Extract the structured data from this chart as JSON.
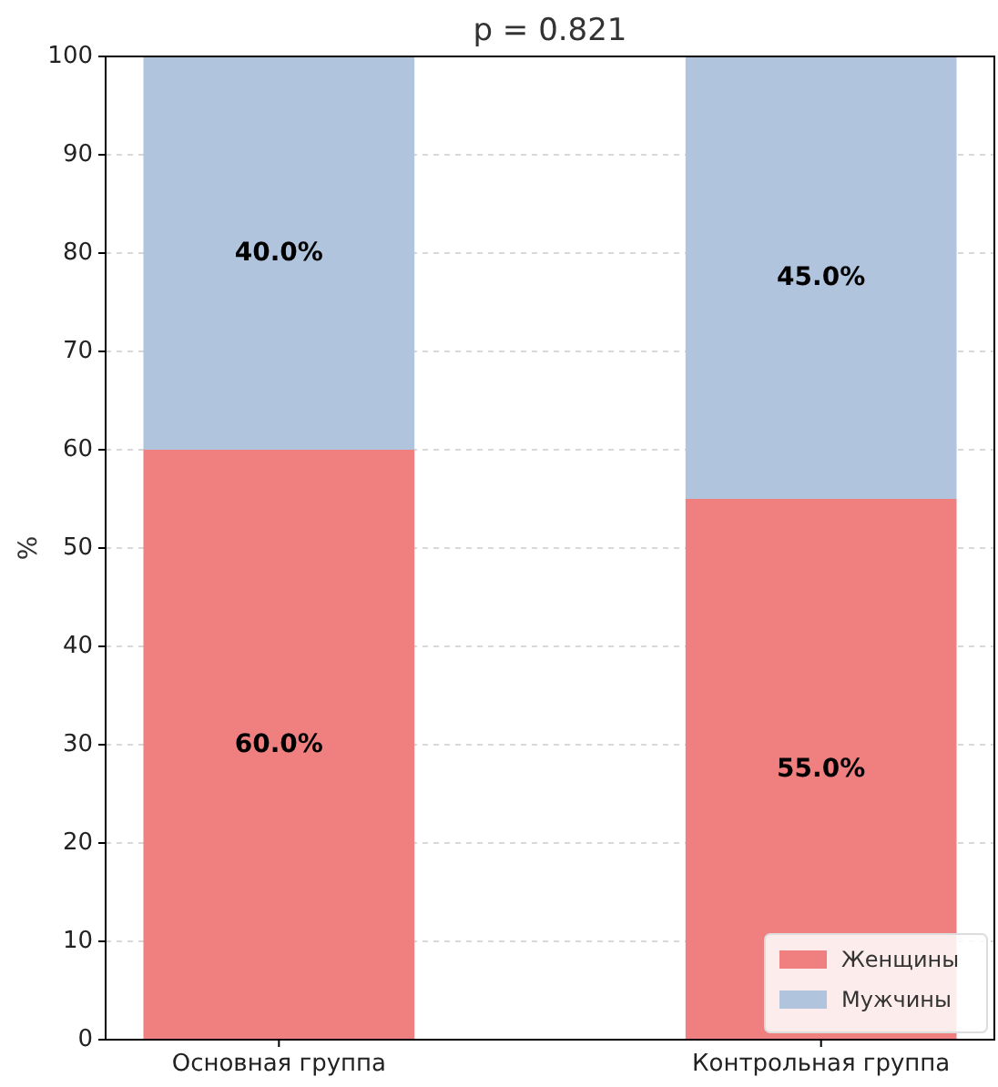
{
  "chart_data": {
    "type": "bar",
    "title": "p = 0.821",
    "ylabel": "%",
    "categories": [
      "Основная группа",
      "Контрольная группа"
    ],
    "stacked": true,
    "series": [
      {
        "name": "Женщины",
        "color": "#f08080",
        "values": [
          60,
          55
        ],
        "value_labels": [
          "60.0%",
          "55.0%"
        ]
      },
      {
        "name": "Мужчины",
        "color": "#b0c4de",
        "values": [
          40,
          45
        ],
        "value_labels": [
          "40.0%",
          "45.0%"
        ]
      }
    ],
    "ylim": [
      0,
      100
    ],
    "yticks": [
      0,
      10,
      20,
      30,
      40,
      50,
      60,
      70,
      80,
      90,
      100
    ],
    "grid": true,
    "legend": "bottom right"
  }
}
